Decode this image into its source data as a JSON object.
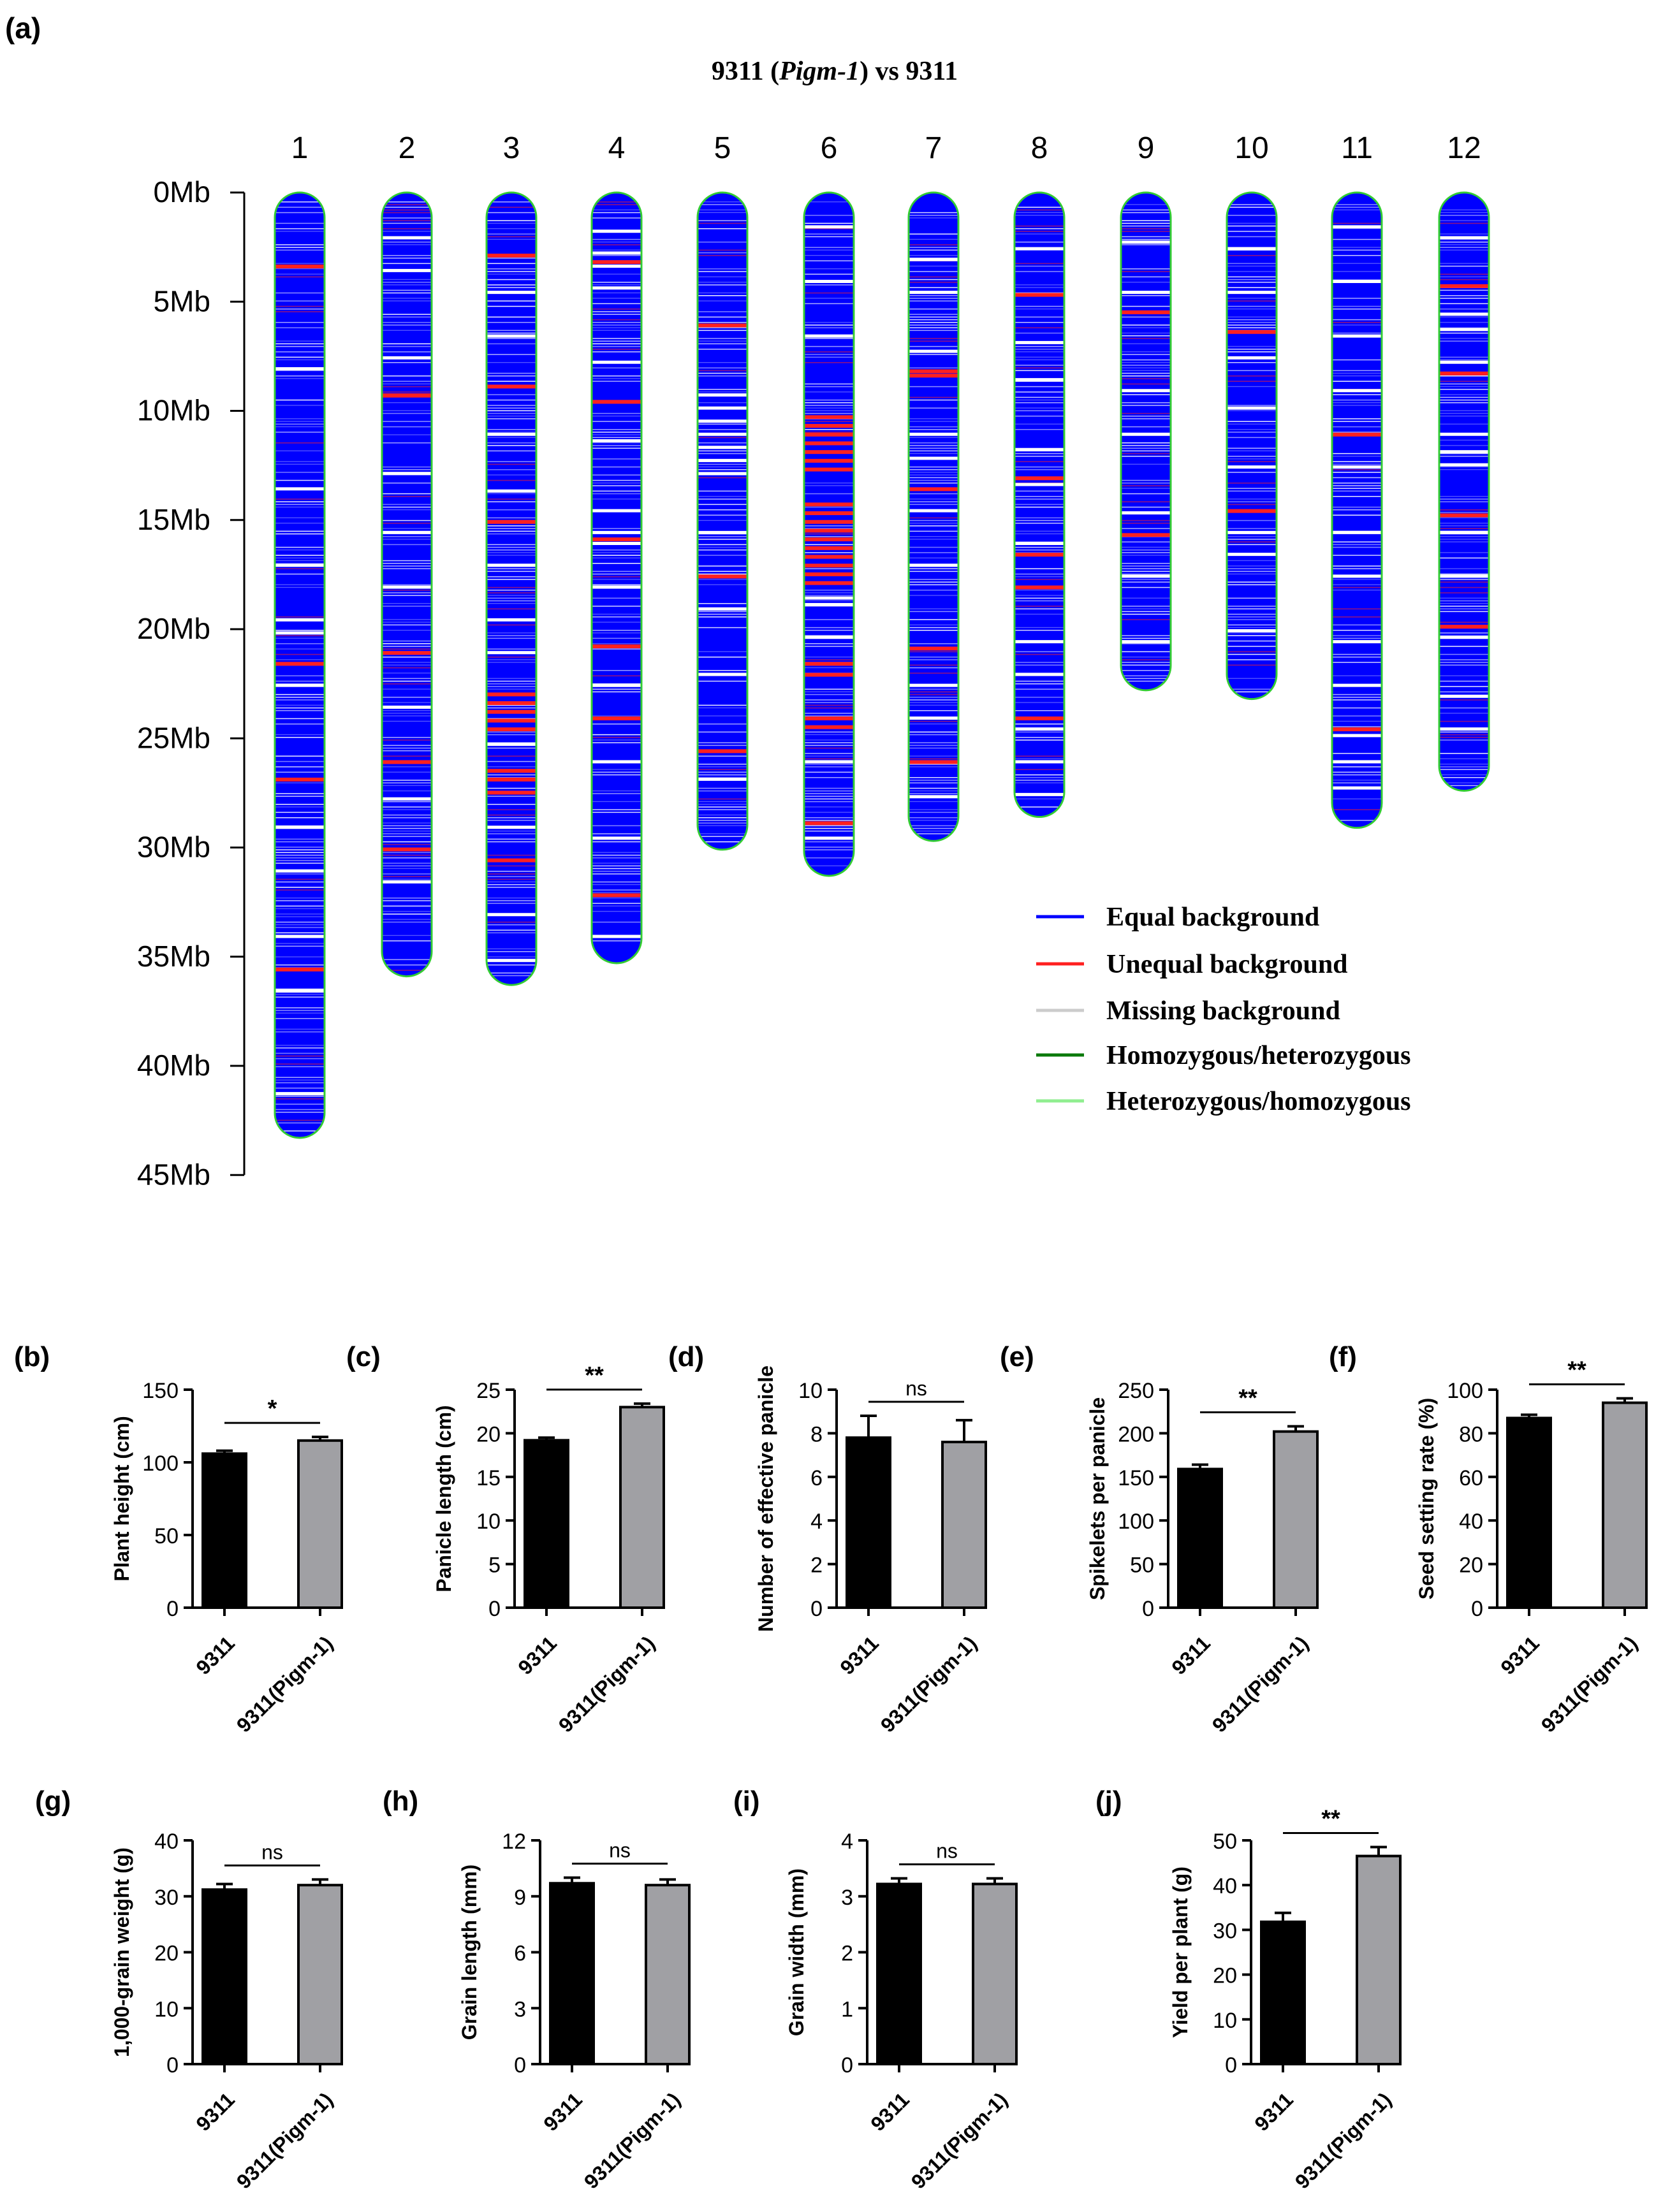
{
  "chart_data": [
    {
      "panel": "(a)",
      "type": "other",
      "title_prefix": "9311 (",
      "title_italic": "Pigm-1",
      "title_suffix": ") vs 9311",
      "ytick_labels": [
        "0Mb",
        "5Mb",
        "10Mb",
        "15Mb",
        "20Mb",
        "25Mb",
        "30Mb",
        "35Mb",
        "40Mb",
        "45Mb"
      ],
      "yticks": [
        0,
        5,
        10,
        15,
        20,
        25,
        30,
        35,
        40,
        45
      ],
      "ylim": [
        0,
        45
      ],
      "chromosomes": [
        {
          "name": "1",
          "length": 43.3,
          "red": [
            3.3,
            21.5,
            26.8,
            35.5
          ],
          "white": [
            8,
            13.5,
            17,
            19.5,
            20.1,
            22.5,
            29,
            31,
            34,
            36.5,
            41.2
          ]
        },
        {
          "name": "2",
          "length": 35.9,
          "red": [
            9.2,
            21,
            26,
            30
          ],
          "white": [
            2,
            3.5,
            7.5,
            12.8,
            15.5,
            18,
            23.5,
            27.7,
            31.5
          ]
        },
        {
          "name": "3",
          "length": 36.3,
          "red": [
            2.8,
            8.8,
            15,
            22.9,
            23.3,
            23.7,
            24.1,
            24.5,
            26.4,
            26.8,
            27.4,
            30.5
          ],
          "white": [
            4.5,
            6.5,
            11,
            13.6,
            17,
            19.5,
            21,
            25.2,
            29,
            33,
            35.1
          ]
        },
        {
          "name": "4",
          "length": 35.3,
          "red": [
            3.1,
            9.5,
            15.8,
            20.7,
            24,
            32.1
          ],
          "white": [
            1.7,
            2.7,
            3.3,
            4.3,
            7.7,
            11.3,
            14.5,
            15.5,
            16,
            18,
            22.5,
            26,
            29.5,
            34
          ]
        },
        {
          "name": "5",
          "length": 30.1,
          "red": [
            6,
            17.5,
            25.5
          ],
          "white": [
            9.2,
            9.8,
            10.4,
            11.0,
            11.6,
            12.2,
            12.8,
            15.5,
            19,
            22,
            26.8
          ]
        },
        {
          "name": "6",
          "length": 31.3,
          "red": [
            10.2,
            10.6,
            11,
            11.4,
            11.8,
            12.2,
            12.6,
            14.2,
            14.6,
            15,
            15.4,
            15.8,
            16.2,
            16.6,
            17,
            17.4,
            17.8,
            21.5,
            22,
            24,
            24.4,
            28.8
          ],
          "white": [
            1.5,
            4,
            6.5,
            18.5,
            18.8,
            20.3,
            26,
            29.5
          ]
        },
        {
          "name": "7",
          "length": 29.7,
          "red": [
            8.1,
            8.3,
            13.5,
            20.8,
            26
          ],
          "white": [
            3,
            4.5,
            7.2,
            11,
            12.1,
            14.5,
            17,
            22.5,
            24,
            27.6
          ]
        },
        {
          "name": "8",
          "length": 28.6,
          "red": [
            4.6,
            13,
            16.5,
            18,
            24
          ],
          "white": [
            2.5,
            6.8,
            8.5,
            11.7,
            13.3,
            16,
            20.5,
            22,
            24.5,
            26,
            27.5
          ]
        },
        {
          "name": "9",
          "length": 22.8,
          "red": [
            5.4,
            15.6
          ],
          "white": [
            2.2,
            4.5,
            9,
            11,
            14.6,
            17.5,
            20.5
          ]
        },
        {
          "name": "10",
          "length": 23.2,
          "red": [
            6.3,
            14.5
          ],
          "white": [
            2.5,
            4.5,
            7.5,
            9.8,
            12.5,
            15.5,
            16.5,
            20
          ]
        },
        {
          "name": "11",
          "length": 29.1,
          "red": [
            11,
            24.5
          ],
          "white": [
            1.5,
            4,
            6.5,
            9,
            12.5,
            15.5,
            17.5,
            20.5,
            22.5,
            24.8,
            26,
            27.2
          ]
        },
        {
          "name": "12",
          "length": 27.4,
          "red": [
            4.2,
            8.2,
            14.7,
            19.8
          ],
          "white": [
            2,
            5.5,
            6.2,
            7.7,
            11,
            11.8,
            12.4,
            15.5,
            17.5,
            20.3,
            23,
            24.5
          ]
        }
      ],
      "legend": [
        {
          "label": "Equal background",
          "color": "#0000FF"
        },
        {
          "label": "Unequal background",
          "color": "#FF2020"
        },
        {
          "label": "Missing background",
          "color": "#CCCCCC"
        },
        {
          "label": "Homozygous/heterozygous",
          "color": "#0B7A0B"
        },
        {
          "label": "Heterozygous/homozygous",
          "color": "#90EE90"
        }
      ],
      "legend_position": "bottom-right",
      "colors": {
        "equal": "#0000FF",
        "unequal": "#FF2020",
        "missing": "#FFFFFF",
        "outline": "#33CC33"
      }
    },
    {
      "panel": "(b)",
      "type": "bar",
      "ylabel": "Plant height (cm)",
      "categories": [
        "9311",
        "9311(Pigm-1)"
      ],
      "values": [
        106,
        115
      ],
      "errors": [
        2,
        2.5
      ],
      "ylim": [
        0,
        150
      ],
      "yticks": [
        0,
        50,
        100,
        150
      ],
      "significance": "*",
      "colors": [
        "#000000",
        "#A0A0A4"
      ]
    },
    {
      "panel": "(c)",
      "type": "bar",
      "ylabel": "Panicle length (cm)",
      "categories": [
        "9311",
        "9311(Pigm-1)"
      ],
      "values": [
        19.2,
        23
      ],
      "errors": [
        0.3,
        0.4
      ],
      "ylim": [
        0,
        25
      ],
      "yticks": [
        0,
        5,
        10,
        15,
        20,
        25
      ],
      "significance": "**",
      "colors": [
        "#000000",
        "#A0A0A4"
      ]
    },
    {
      "panel": "(d)",
      "type": "bar",
      "ylabel": "Number of effective panicle",
      "categories": [
        "9311",
        "9311(Pigm-1)"
      ],
      "values": [
        7.8,
        7.6
      ],
      "errors": [
        1.0,
        1.0
      ],
      "ylim": [
        0,
        10
      ],
      "yticks": [
        0,
        2,
        4,
        6,
        8,
        10
      ],
      "significance": "ns",
      "colors": [
        "#000000",
        "#A0A0A4"
      ]
    },
    {
      "panel": "(e)",
      "type": "bar",
      "ylabel": "Spikelets per panicle",
      "categories": [
        "9311",
        "9311(Pigm-1)"
      ],
      "values": [
        159,
        202
      ],
      "errors": [
        5,
        6
      ],
      "ylim": [
        0,
        250
      ],
      "yticks": [
        0,
        50,
        100,
        150,
        200,
        250
      ],
      "significance": "**",
      "colors": [
        "#000000",
        "#A0A0A4"
      ]
    },
    {
      "panel": "(f)",
      "type": "bar",
      "ylabel": "Seed setting rate (%)",
      "categories": [
        "9311",
        "9311(Pigm-1)"
      ],
      "values": [
        87,
        94
      ],
      "errors": [
        1.5,
        2
      ],
      "ylim": [
        0,
        100
      ],
      "yticks": [
        0,
        20,
        40,
        60,
        80,
        100
      ],
      "significance": "**",
      "colors": [
        "#000000",
        "#A0A0A4"
      ]
    },
    {
      "panel": "(g)",
      "type": "bar",
      "ylabel": "1,000-grain weight (g)",
      "categories": [
        "9311",
        "9311(Pigm-1)"
      ],
      "values": [
        31.2,
        32
      ],
      "errors": [
        1,
        1
      ],
      "ylim": [
        0,
        40
      ],
      "yticks": [
        0,
        10,
        20,
        30,
        40
      ],
      "significance": "ns",
      "colors": [
        "#000000",
        "#A0A0A4"
      ]
    },
    {
      "panel": "(h)",
      "type": "bar",
      "ylabel": "Grain length (mm)",
      "categories": [
        "9311",
        "9311(Pigm-1)"
      ],
      "values": [
        9.7,
        9.6
      ],
      "errors": [
        0.3,
        0.3
      ],
      "ylim": [
        0,
        12
      ],
      "yticks": [
        0,
        3,
        6,
        9,
        12
      ],
      "significance": "ns",
      "colors": [
        "#000000",
        "#A0A0A4"
      ]
    },
    {
      "panel": "(i)",
      "type": "bar",
      "ylabel": "Grain width (mm)",
      "categories": [
        "9311",
        "9311(Pigm-1)"
      ],
      "values": [
        3.22,
        3.22
      ],
      "errors": [
        0.1,
        0.1
      ],
      "ylim": [
        0,
        4
      ],
      "yticks": [
        0,
        1,
        2,
        3,
        4
      ],
      "significance": "ns",
      "colors": [
        "#000000",
        "#A0A0A4"
      ]
    },
    {
      "panel": "(j)",
      "type": "bar",
      "ylabel": "Yield per plant (g)",
      "categories": [
        "9311",
        "9311(Pigm-1)"
      ],
      "values": [
        31.8,
        46.5
      ],
      "errors": [
        2,
        2
      ],
      "ylim": [
        0,
        50
      ],
      "yticks": [
        0,
        10,
        20,
        30,
        40,
        50
      ],
      "significance": "**",
      "colors": [
        "#000000",
        "#A0A0A4"
      ]
    }
  ]
}
